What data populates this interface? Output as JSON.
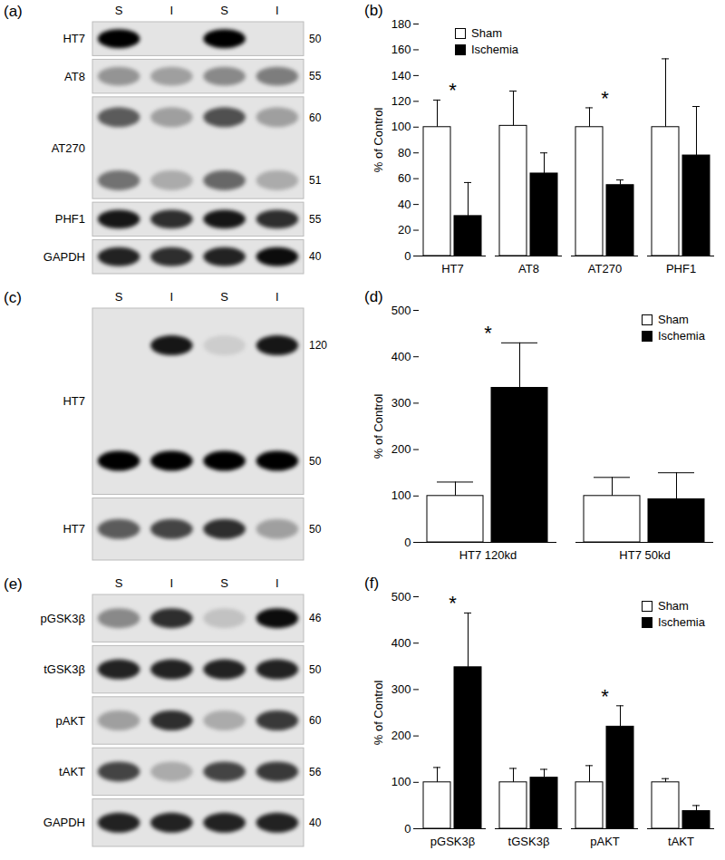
{
  "chart_data": [
    {
      "title": "(b)",
      "type": "bar",
      "ylabel": "% of Control",
      "categories": [
        "HT7",
        "AT8",
        "AT270",
        "PHF1"
      ],
      "series": [
        {
          "name": "Sham",
          "color": "#ffffff",
          "values": [
            100,
            101,
            100,
            100
          ],
          "errors": [
            21,
            27,
            15,
            53
          ]
        },
        {
          "name": "Ischemia",
          "color": "#000000",
          "values": [
            31,
            64,
            55,
            78
          ],
          "errors": [
            26,
            16,
            4,
            38
          ]
        }
      ],
      "ylim": [
        0,
        180
      ],
      "yticks": [
        0,
        20,
        40,
        60,
        80,
        100,
        120,
        140,
        160,
        180
      ],
      "legend": "top-left",
      "annotations": [
        {
          "category": "HT7",
          "text": "*"
        },
        {
          "category": "AT270",
          "text": "*"
        }
      ]
    },
    {
      "title": "(d)",
      "type": "bar",
      "ylabel": "% of Control",
      "categories": [
        "HT7 120kd",
        "HT7 50kd"
      ],
      "series": [
        {
          "name": "Sham",
          "color": "#ffffff",
          "values": [
            100,
            100
          ],
          "errors": [
            30,
            40
          ]
        },
        {
          "name": "Ischemia",
          "color": "#000000",
          "values": [
            333,
            93
          ],
          "errors": [
            97,
            57
          ]
        }
      ],
      "ylim": [
        0,
        500
      ],
      "yticks": [
        0,
        100,
        200,
        300,
        400,
        500
      ],
      "legend": "top-right",
      "annotations": [
        {
          "category": "HT7 120kd",
          "text": "*"
        }
      ]
    },
    {
      "title": "(f)",
      "type": "bar",
      "ylabel": "% of Control",
      "categories": [
        "pGSK3β",
        "tGSK3β",
        "pAKT",
        "tAKT"
      ],
      "series": [
        {
          "name": "Sham",
          "color": "#ffffff",
          "values": [
            100,
            100,
            100,
            100
          ],
          "errors": [
            32,
            30,
            36,
            8
          ]
        },
        {
          "name": "Ischemia",
          "color": "#000000",
          "values": [
            348,
            110,
            220,
            38
          ],
          "errors": [
            117,
            18,
            45,
            12
          ]
        }
      ],
      "ylim": [
        0,
        500
      ],
      "yticks": [
        0,
        100,
        200,
        300,
        400,
        500
      ],
      "legend": "top-right",
      "annotations": [
        {
          "category": "pGSK3β",
          "text": "*"
        },
        {
          "category": "pAKT",
          "text": "*"
        }
      ]
    }
  ],
  "blots": [
    {
      "title": "(a)",
      "lanes": [
        "S",
        "I",
        "S",
        "I"
      ],
      "rows": [
        {
          "label": "HT7",
          "bands": [
            {
              "mw": 50,
              "intensity": [
                1,
                0,
                1,
                0
              ]
            }
          ]
        },
        {
          "label": "AT8",
          "bands": [
            {
              "mw": 55,
              "intensity": [
                0.35,
                0.3,
                0.4,
                0.45
              ]
            }
          ]
        },
        {
          "label": "AT270",
          "bands": [
            {
              "mw": 60,
              "intensity": [
                0.6,
                0.3,
                0.65,
                0.3
              ]
            },
            {
              "mw": 51,
              "intensity": [
                0.5,
                0.25,
                0.55,
                0.25
              ]
            }
          ]
        },
        {
          "label": "PHF1",
          "bands": [
            {
              "mw": 55,
              "intensity": [
                0.9,
                0.8,
                0.9,
                0.8
              ]
            }
          ]
        },
        {
          "label": "GAPDH",
          "bands": [
            {
              "mw": 40,
              "intensity": [
                0.85,
                0.8,
                0.85,
                0.95
              ]
            }
          ]
        }
      ]
    },
    {
      "title": "(c)",
      "lanes": [
        "S",
        "I",
        "S",
        "I"
      ],
      "rows": [
        {
          "label": "HT7",
          "bands": [
            {
              "mw": 120,
              "intensity": [
                0,
                0.9,
                0.1,
                0.9
              ]
            },
            {
              "mw": 50,
              "intensity": [
                1,
                1,
                1,
                1
              ]
            }
          ]
        },
        {
          "label": "HT7",
          "bands": [
            {
              "mw": 50,
              "intensity": [
                0.6,
                0.7,
                0.8,
                0.3
              ]
            }
          ]
        }
      ]
    },
    {
      "title": "(e)",
      "lanes": [
        "S",
        "I",
        "S",
        "I"
      ],
      "rows": [
        {
          "label": "pGSK3β",
          "bands": [
            {
              "mw": 46,
              "intensity": [
                0.4,
                0.8,
                0.15,
                0.95
              ]
            }
          ]
        },
        {
          "label": "tGSK3β",
          "bands": [
            {
              "mw": 50,
              "intensity": [
                0.85,
                0.85,
                0.85,
                0.85
              ]
            }
          ]
        },
        {
          "label": "pAKT",
          "bands": [
            {
              "mw": 60,
              "intensity": [
                0.3,
                0.8,
                0.25,
                0.75
              ]
            }
          ]
        },
        {
          "label": "tAKT",
          "bands": [
            {
              "mw": 56,
              "intensity": [
                0.7,
                0.25,
                0.7,
                0.75
              ]
            }
          ]
        },
        {
          "label": "GAPDH",
          "bands": [
            {
              "mw": 40,
              "intensity": [
                0.85,
                0.85,
                0.85,
                0.85
              ]
            }
          ]
        }
      ]
    }
  ]
}
